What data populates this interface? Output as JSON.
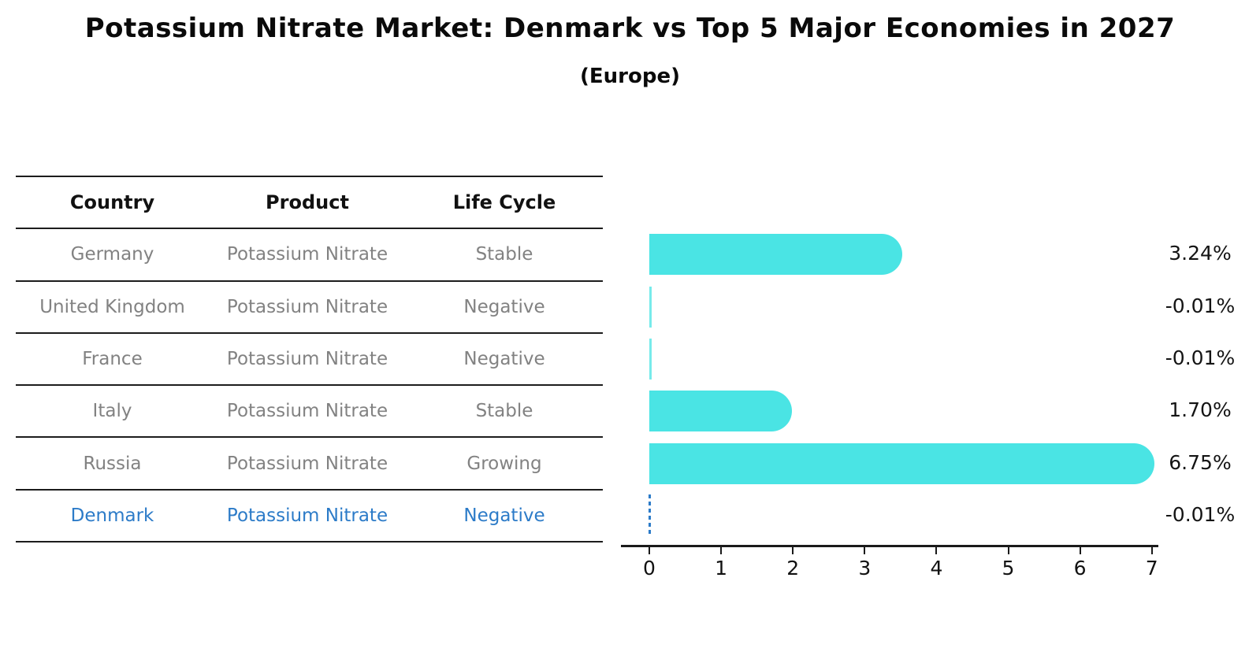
{
  "title": "Potassium Nitrate Market: Denmark vs Top 5 Major Economies in 2027",
  "subtitle": "(Europe)",
  "table": {
    "headers": [
      "Country",
      "Product",
      "Life Cycle"
    ],
    "rows": [
      {
        "country": "Germany",
        "product": "Potassium Nitrate",
        "life_cycle": "Stable",
        "highlighted": false
      },
      {
        "country": "United Kingdom",
        "product": "Potassium Nitrate",
        "life_cycle": "Negative",
        "highlighted": false
      },
      {
        "country": "France",
        "product": "Potassium Nitrate",
        "life_cycle": "Negative",
        "highlighted": false
      },
      {
        "country": "Italy",
        "product": "Potassium Nitrate",
        "life_cycle": "Stable",
        "highlighted": false
      },
      {
        "country": "Russia",
        "product": "Potassium Nitrate",
        "life_cycle": "Growing",
        "highlighted": false
      },
      {
        "country": "Denmark",
        "product": "Potassium Nitrate",
        "life_cycle": "Negative",
        "highlighted": true
      }
    ]
  },
  "chart_data": {
    "type": "bar",
    "orientation": "horizontal",
    "title": "Potassium Nitrate Market: Denmark vs Top 5 Major Economies in 2027",
    "subtitle": "(Europe)",
    "categories": [
      "Germany",
      "United Kingdom",
      "France",
      "Italy",
      "Russia",
      "Denmark"
    ],
    "values": [
      3.24,
      -0.01,
      -0.01,
      1.7,
      6.75,
      -0.01
    ],
    "value_labels": [
      "3.24%",
      "-0.01%",
      "-0.01%",
      "1.70%",
      "6.75%",
      "-0.01%"
    ],
    "xlabel": "",
    "ylabel": "",
    "xlim": [
      0,
      7
    ],
    "x_ticks": [
      0,
      1,
      2,
      3,
      4,
      5,
      6,
      7
    ],
    "grid": false,
    "legend_position": "none",
    "bar_color": "#4ae4e4",
    "highlight_index": 5,
    "highlight_style": "dashed-blue-outline",
    "highlight_color": "#2c7bc8"
  },
  "colors": {
    "background": "#ffffff",
    "bar": "#4ae4e4",
    "highlight": "#2c7bc8",
    "table_text": "#828282",
    "heading_text": "#111111",
    "axis": "#1a1a1a"
  }
}
